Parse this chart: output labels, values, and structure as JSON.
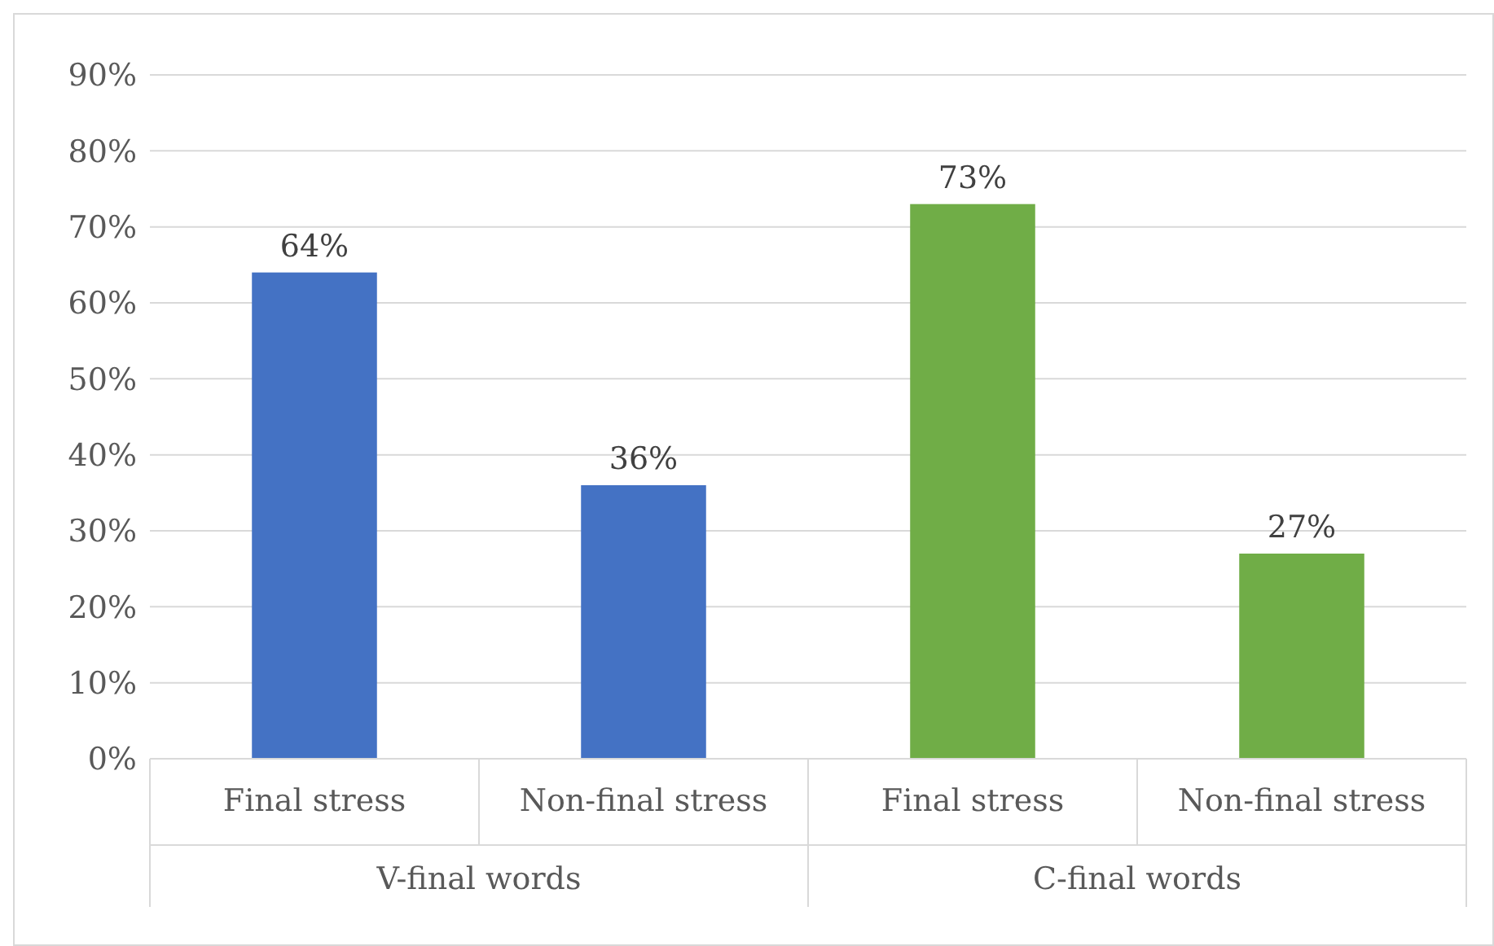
{
  "chart_data": {
    "type": "bar",
    "categories": [
      "Final stress",
      "Non-final stress",
      "Final stress",
      "Non-final stress"
    ],
    "values": [
      64,
      36,
      73,
      27
    ],
    "colors": [
      "#4472c4",
      "#4472c4",
      "#70ad47",
      "#70ad47"
    ],
    "value_labels": [
      "64%",
      "36%",
      "73%",
      "27%"
    ],
    "ylim": [
      0,
      90
    ],
    "yticks": [
      {
        "value": 0,
        "label": "0%"
      },
      {
        "value": 10,
        "label": "10%"
      },
      {
        "value": 20,
        "label": "20%"
      },
      {
        "value": 30,
        "label": "30%"
      },
      {
        "value": 40,
        "label": "40%"
      },
      {
        "value": 50,
        "label": "50%"
      },
      {
        "value": 60,
        "label": "60%"
      },
      {
        "value": 70,
        "label": "70%"
      },
      {
        "value": 80,
        "label": "80%"
      },
      {
        "value": 90,
        "label": "90%"
      }
    ],
    "grid": "y",
    "annotations": [
      "V-final words",
      "C-final words"
    ]
  }
}
